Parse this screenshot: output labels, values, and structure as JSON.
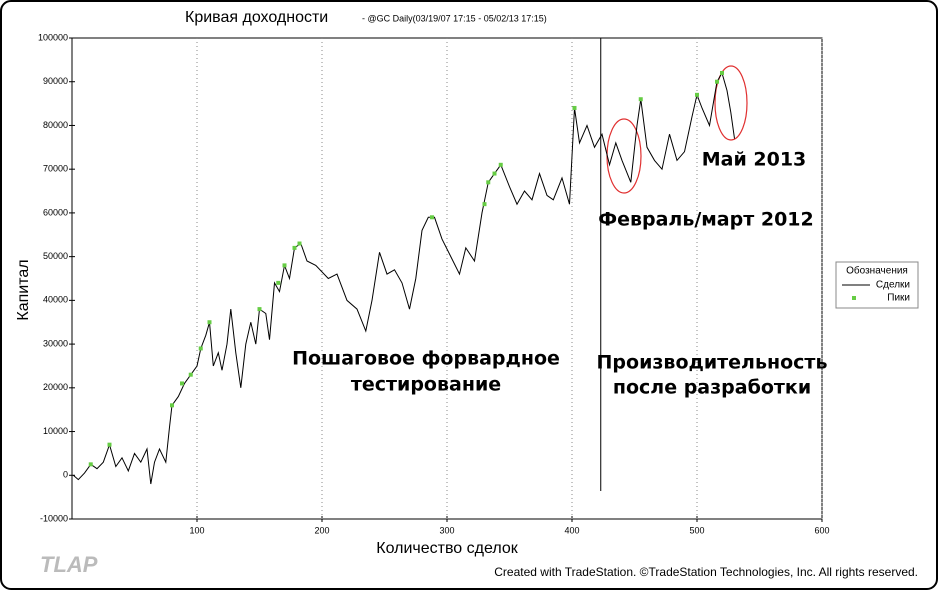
{
  "chart_data": {
    "type": "line",
    "title": "Кривая доходности",
    "subtitle": "- @GC Daily(03/19/07 17:15 - 05/02/13 17:15)",
    "x_label": "Количество сделок",
    "y_label": "Капитал",
    "xlim": [
      0,
      600
    ],
    "xticks": [
      100,
      200,
      300,
      400,
      500,
      600
    ],
    "ylim": [
      -10000,
      100000
    ],
    "yticks": [
      -10000,
      0,
      10000,
      20000,
      30000,
      40000,
      50000,
      60000,
      70000,
      80000,
      90000,
      100000
    ],
    "grid": true,
    "divider_x": 423,
    "legend_title": "Обозначения",
    "legend_position": "right",
    "series": [
      {
        "name": "Сделки",
        "color": "#000000",
        "mark": "line",
        "x": [
          1,
          5,
          10,
          15,
          20,
          25,
          30,
          35,
          40,
          45,
          50,
          55,
          60,
          63,
          66,
          70,
          75,
          78,
          80,
          85,
          90,
          95,
          100,
          103,
          107,
          110,
          113,
          117,
          120,
          124,
          127,
          131,
          135,
          139,
          143,
          147,
          150,
          155,
          158,
          162,
          166,
          170,
          174,
          178,
          183,
          188,
          195,
          205,
          212,
          220,
          228,
          235,
          240,
          246,
          252,
          258,
          264,
          270,
          275,
          280,
          285,
          290,
          296,
          303,
          310,
          315,
          322,
          328,
          333,
          338,
          343,
          350,
          356,
          362,
          368,
          374,
          380,
          385,
          392,
          398,
          402,
          406,
          412,
          418,
          424,
          430,
          435,
          440,
          447,
          452,
          455,
          460,
          466,
          472,
          478,
          484,
          490,
          496,
          500,
          504,
          510,
          516,
          520,
          524,
          527,
          530
        ],
        "values": [
          0,
          -1000,
          500,
          2500,
          1500,
          3000,
          7000,
          2000,
          4000,
          1000,
          5000,
          3000,
          6000,
          -2000,
          3000,
          6000,
          3000,
          11000,
          16000,
          18000,
          21000,
          23000,
          25000,
          29000,
          32000,
          35000,
          25000,
          28000,
          24000,
          30000,
          38000,
          28000,
          20000,
          30000,
          35000,
          30000,
          38000,
          37000,
          31000,
          44000,
          42000,
          48000,
          45000,
          52000,
          53000,
          49000,
          48000,
          45000,
          46000,
          40000,
          38000,
          33000,
          40000,
          51000,
          46000,
          47000,
          44000,
          38000,
          45000,
          56000,
          59000,
          59000,
          54000,
          50000,
          46000,
          52000,
          49000,
          60000,
          67000,
          69000,
          71000,
          66000,
          62000,
          65000,
          63000,
          69000,
          64000,
          63000,
          68000,
          62000,
          84000,
          76000,
          80000,
          75000,
          78000,
          71000,
          76000,
          72000,
          67000,
          80000,
          86000,
          75000,
          72000,
          70000,
          78000,
          72000,
          74000,
          82000,
          87000,
          84000,
          80000,
          90000,
          92000,
          88000,
          83000,
          77000
        ]
      },
      {
        "name": "Пики",
        "color": "#66cc44",
        "mark": "point",
        "x": [
          15,
          30,
          80,
          88,
          95,
          103,
          110,
          150,
          165,
          170,
          178,
          182,
          288,
          330,
          333,
          338,
          343,
          402,
          455,
          500,
          516,
          520
        ],
        "values": [
          2500,
          7000,
          16000,
          21000,
          23000,
          29000,
          35000,
          38000,
          44000,
          48000,
          52000,
          53000,
          59000,
          62000,
          67000,
          69000,
          71000,
          84000,
          86000,
          87000,
          90000,
          92000
        ]
      }
    ],
    "annotations": [
      "Пошаговое форвардное",
      "тестирование",
      "Производительность",
      "после разработки",
      "Февраль/март 2012",
      "Май 2013"
    ],
    "watermark": "TLAP",
    "footer": "Created with TradeStation. ©TradeStation Technologies, Inc. All rights reserved."
  }
}
